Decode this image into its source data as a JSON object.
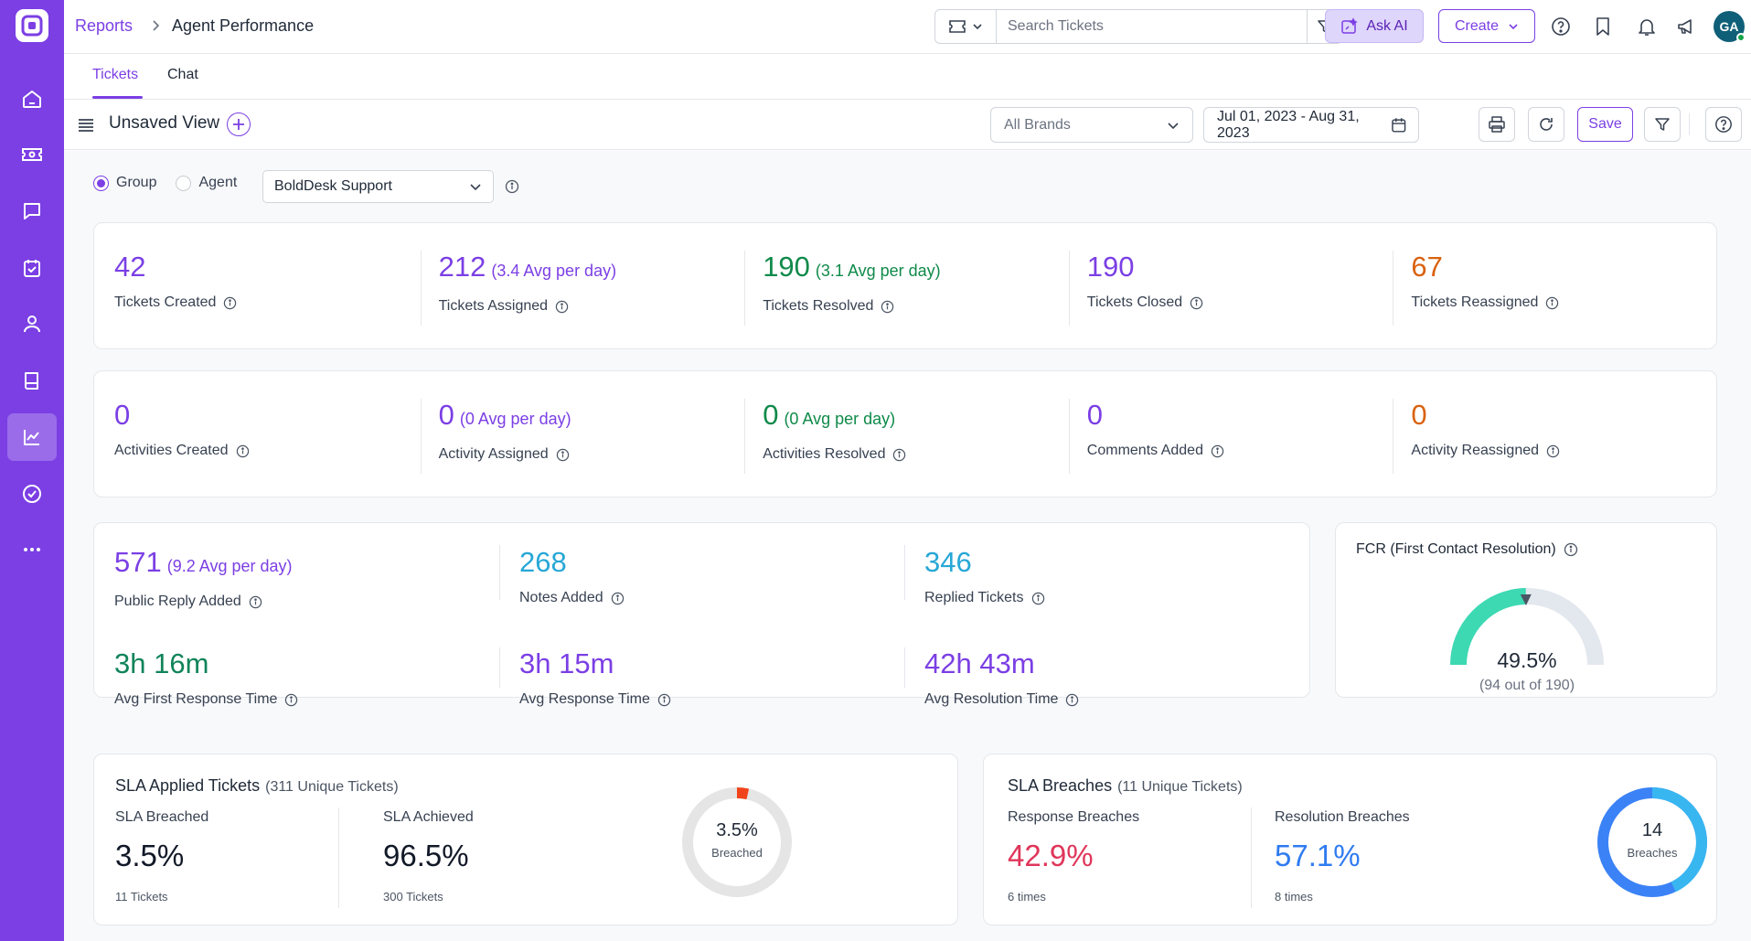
{
  "colors": {
    "brand": "#7b3fe4",
    "green": "#0f8a4a",
    "orange": "#d9620f",
    "cyan": "#27a7d6",
    "red": "#e0365a",
    "blue": "#2f7bf0"
  },
  "breadcrumb": {
    "root": "Reports",
    "current": "Agent Performance"
  },
  "sidebar": {
    "items": [
      "home-icon",
      "tickets-icon",
      "chat-icon",
      "tasks-icon",
      "contacts-icon",
      "knowledge-base-icon",
      "reports-icon",
      "approvals-icon",
      "more-icon"
    ],
    "active": "reports-icon"
  },
  "topbar": {
    "search_placeholder": "Search Tickets",
    "ask_ai": "Ask AI",
    "create": "Create",
    "avatar_initials": "GA"
  },
  "tabs": [
    {
      "label": "Tickets",
      "active": true
    },
    {
      "label": "Chat",
      "active": false
    }
  ],
  "view": {
    "title": "Unsaved View",
    "brand_filter": "All Brands",
    "date_range": "Jul 01, 2023 - Aug 31, 2023",
    "save": "Save"
  },
  "options": {
    "group_label": "Group",
    "agent_label": "Agent",
    "selected": "Group",
    "group_value": "BoldDesk Support"
  },
  "ticket_metrics": [
    {
      "value": "42",
      "avg": "",
      "label": "Tickets Created",
      "color": "#7b3fe4"
    },
    {
      "value": "212",
      "avg": "(3.4 Avg per day)",
      "label": "Tickets Assigned",
      "color": "#7b3fe4"
    },
    {
      "value": "190",
      "avg": "(3.1 Avg per day)",
      "label": "Tickets Resolved",
      "color": "#0f8a4a"
    },
    {
      "value": "190",
      "avg": "",
      "label": "Tickets Closed",
      "color": "#7b3fe4"
    },
    {
      "value": "67",
      "avg": "",
      "label": "Tickets Reassigned",
      "color": "#d9620f"
    }
  ],
  "activity_metrics": [
    {
      "value": "0",
      "avg": "",
      "label": "Activities Created",
      "color": "#7b3fe4"
    },
    {
      "value": "0",
      "avg": "(0 Avg per day)",
      "label": "Activity Assigned",
      "color": "#7b3fe4"
    },
    {
      "value": "0",
      "avg": "(0 Avg per day)",
      "label": "Activities Resolved",
      "color": "#0f8a4a"
    },
    {
      "value": "0",
      "avg": "",
      "label": "Comments Added",
      "color": "#7b3fe4"
    },
    {
      "value": "0",
      "avg": "",
      "label": "Activity Reassigned",
      "color": "#d9620f"
    }
  ],
  "reply_metrics": [
    {
      "value": "571",
      "avg": "(9.2 Avg per day)",
      "label": "Public Reply Added",
      "color": "#7b3fe4"
    },
    {
      "value": "268",
      "avg": "",
      "label": "Notes Added",
      "color": "#27a7d6"
    },
    {
      "value": "346",
      "avg": "",
      "label": "Replied Tickets",
      "color": "#27a7d6"
    }
  ],
  "time_metrics": [
    {
      "value": "3h 16m",
      "label": "Avg First Response Time",
      "color": "#11845b"
    },
    {
      "value": "3h 15m",
      "label": "Avg Response Time",
      "color": "#7b3fe4"
    },
    {
      "value": "42h 43m",
      "label": "Avg Resolution Time",
      "color": "#7b3fe4"
    }
  ],
  "fcr": {
    "title": "FCR (First Contact Resolution)",
    "value": "49.5%",
    "sub": "(94 out of 190)",
    "fraction": 0.495
  },
  "sla_applied": {
    "title": "SLA Applied Tickets",
    "subtitle": "(311 Unique Tickets)",
    "breached_label": "SLA Breached",
    "breached_value": "3.5%",
    "breached_note": "11 Tickets",
    "achieved_label": "SLA Achieved",
    "achieved_value": "96.5%",
    "achieved_note": "300 Tickets",
    "donut_value": "3.5%",
    "donut_label": "Breached",
    "fraction": 0.035
  },
  "sla_breaches": {
    "title": "SLA Breaches",
    "subtitle": "(11 Unique Tickets)",
    "response_label": "Response Breaches",
    "response_value": "42.9%",
    "response_note": "6 times",
    "resolution_label": "Resolution Breaches",
    "resolution_value": "57.1%",
    "resolution_note": "8 times",
    "donut_value": "14",
    "donut_label": "Breaches",
    "response_fraction": 0.429
  }
}
